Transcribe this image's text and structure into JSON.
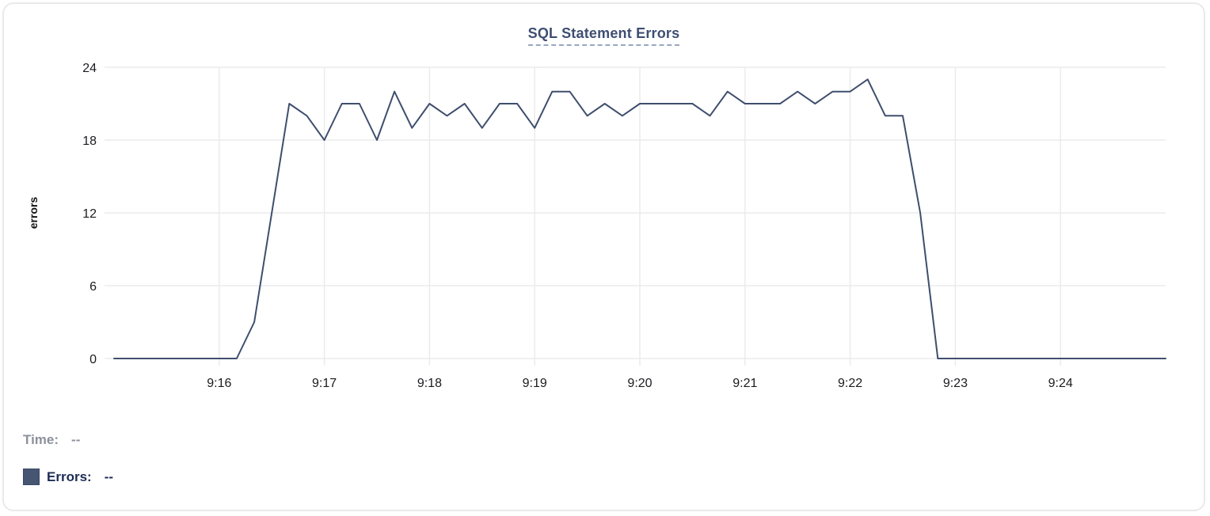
{
  "panel": {
    "title": "SQL Statement Errors"
  },
  "legend": {
    "time_label": "Time:",
    "time_value": "--",
    "errors_label": "Errors:",
    "errors_value": "--",
    "swatch_color": "#465571"
  },
  "colors": {
    "line": "#3f4e6d",
    "title": "#3e4e73",
    "title_underline": "#9aa6c1",
    "grid": "#ebebeb",
    "tick_label": "#1b1b1f",
    "time_label_gray": "#8b909b",
    "errors_label_navy": "#1d2c55",
    "card_border": "#e9eaec"
  },
  "chart_data": {
    "type": "line",
    "title": "SQL Statement Errors",
    "xlabel": "",
    "ylabel": "errors",
    "x_start": "9:15:00",
    "x_end": "9:25:00",
    "interval_seconds": 10,
    "x_tick_labels": [
      "9:16",
      "9:17",
      "9:18",
      "9:19",
      "9:20",
      "9:21",
      "9:22",
      "9:23",
      "9:24"
    ],
    "y_ticks": [
      0,
      6,
      12,
      18,
      24
    ],
    "ylim": [
      0,
      24
    ],
    "grid": true,
    "legend_position": "bottom-left",
    "line_color": "#3f4e6d",
    "series": [
      {
        "name": "Errors",
        "values": [
          0,
          0,
          0,
          0,
          0,
          0,
          0,
          0,
          3,
          12,
          21,
          20,
          18,
          21,
          21,
          18,
          22,
          19,
          21,
          20,
          21,
          19,
          21,
          21,
          19,
          22,
          22,
          20,
          21,
          20,
          21,
          21,
          21,
          21,
          20,
          22,
          21,
          21,
          21,
          22,
          21,
          22,
          22,
          23,
          20,
          20,
          12,
          0,
          0,
          0,
          0,
          0,
          0,
          0,
          0,
          0,
          0,
          0,
          0,
          0,
          0
        ]
      }
    ]
  }
}
